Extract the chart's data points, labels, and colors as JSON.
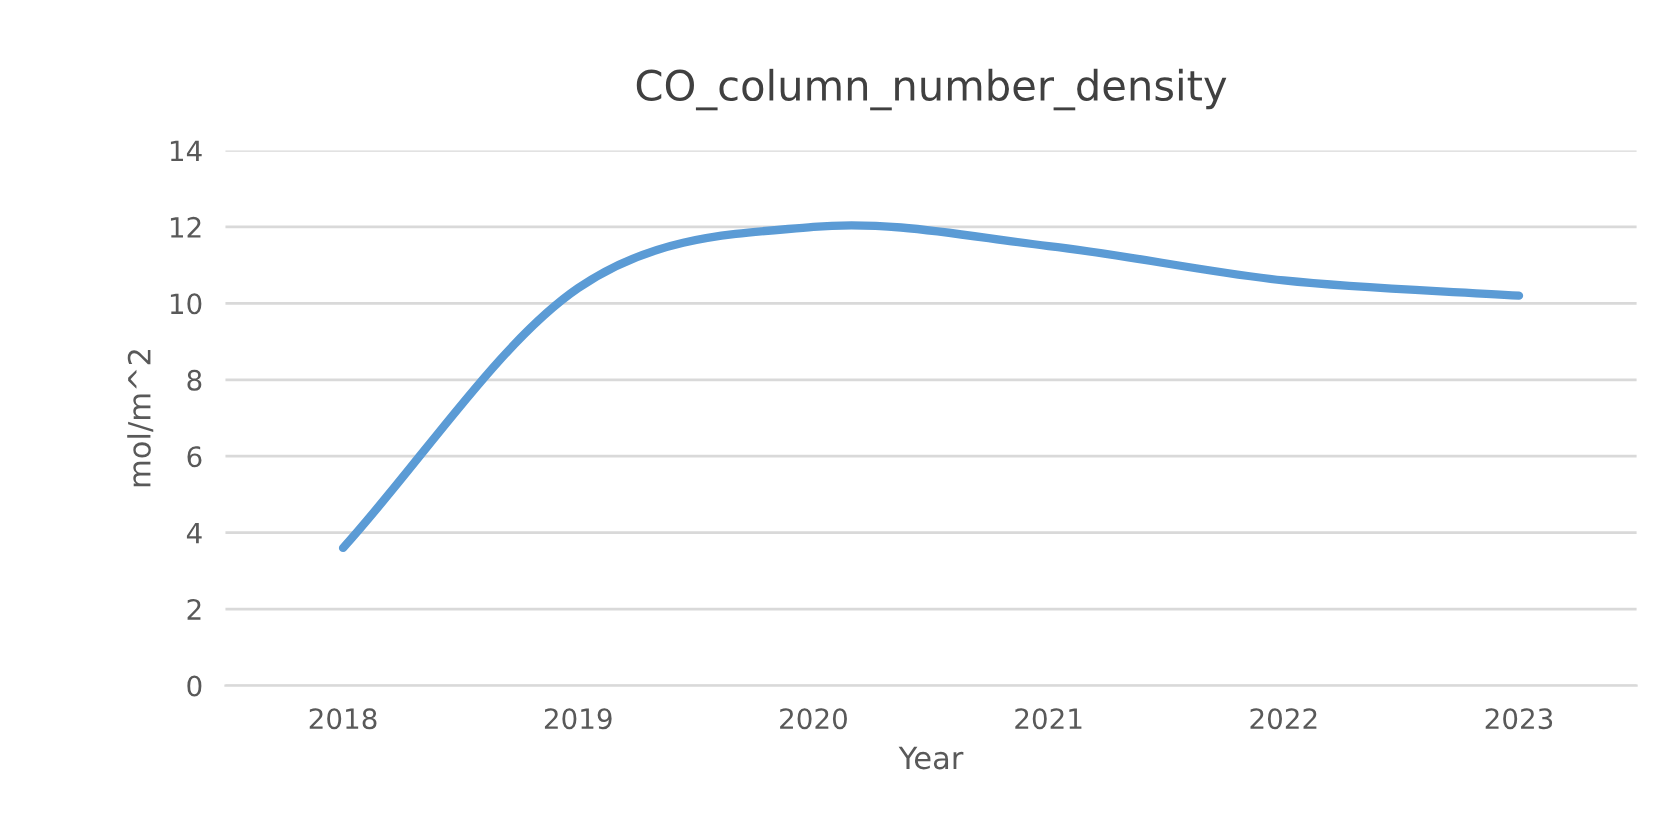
{
  "chart_data": {
    "type": "line",
    "title": "CO_column_number_density",
    "xlabel": "Year",
    "ylabel": "mol/m^2",
    "categories": [
      "2018",
      "2019",
      "2020",
      "2021",
      "2022",
      "2023"
    ],
    "series": [
      {
        "color": "#5b9bd5",
        "values": [
          3.6,
          10.4,
          12.0,
          11.5,
          10.6,
          10.2
        ]
      }
    ],
    "ylim": [
      0,
      14
    ],
    "yticks": [
      0,
      2,
      4,
      6,
      8,
      10,
      12,
      14
    ],
    "grid": "y",
    "legend": false,
    "marker": "none",
    "line_style": "solid"
  }
}
